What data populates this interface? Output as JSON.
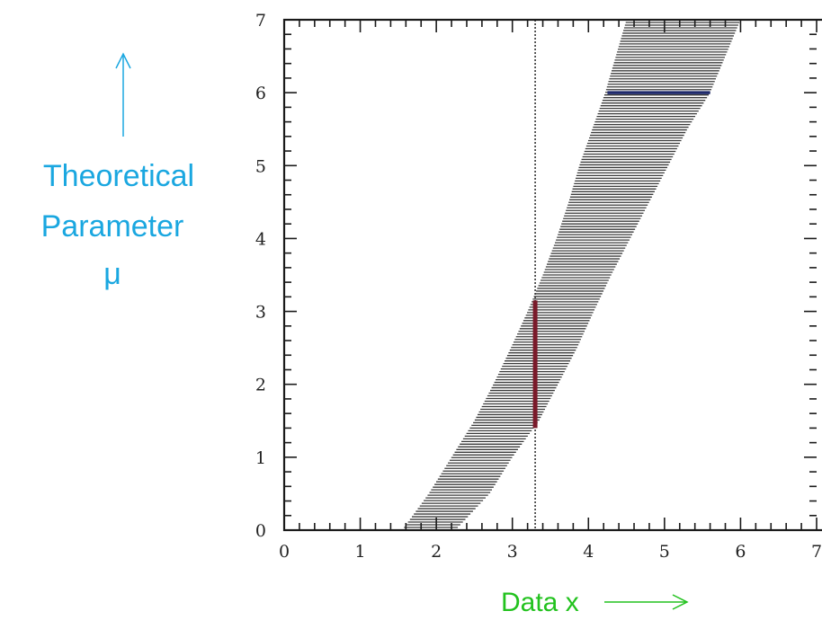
{
  "chart_data": {
    "type": "area",
    "title": "",
    "xlabel": "Data x",
    "ylabel_lines": [
      "Theoretical",
      "Parameter",
      "μ"
    ],
    "x_ticks": [
      "0",
      "1",
      "2",
      "3",
      "4",
      "5",
      "6",
      "7"
    ],
    "y_ticks": [
      "0",
      "1",
      "2",
      "3",
      "4",
      "5",
      "6",
      "7"
    ],
    "xlim": [
      0,
      7
    ],
    "ylim": [
      0,
      7
    ],
    "band": {
      "mu": [
        0.0,
        0.5,
        1.0,
        1.5,
        2.0,
        2.5,
        3.0,
        3.5,
        4.0,
        4.5,
        5.0,
        5.5,
        6.0,
        6.5,
        7.0
      ],
      "x_low": [
        1.55,
        1.9,
        2.2,
        2.5,
        2.75,
        2.98,
        3.2,
        3.4,
        3.58,
        3.74,
        3.88,
        4.05,
        4.22,
        4.36,
        4.5
      ],
      "x_high": [
        2.25,
        2.7,
        3.0,
        3.35,
        3.6,
        3.85,
        4.07,
        4.3,
        4.55,
        4.8,
        5.05,
        5.3,
        5.6,
        5.8,
        6.0
      ]
    },
    "observed_x": 3.3,
    "confidence_interval": {
      "x": 3.3,
      "mu_low": 1.4,
      "mu_high": 3.15,
      "color": "#7a1a2a"
    },
    "acceptance_interval": {
      "mu": 6.0,
      "x_low": 4.25,
      "x_high": 5.6,
      "color": "#1f2a6b"
    },
    "band_color": "#3a3a3a",
    "annotation_colors": {
      "ylabel": "#1aa7e0",
      "xlabel": "#22c21e"
    }
  }
}
